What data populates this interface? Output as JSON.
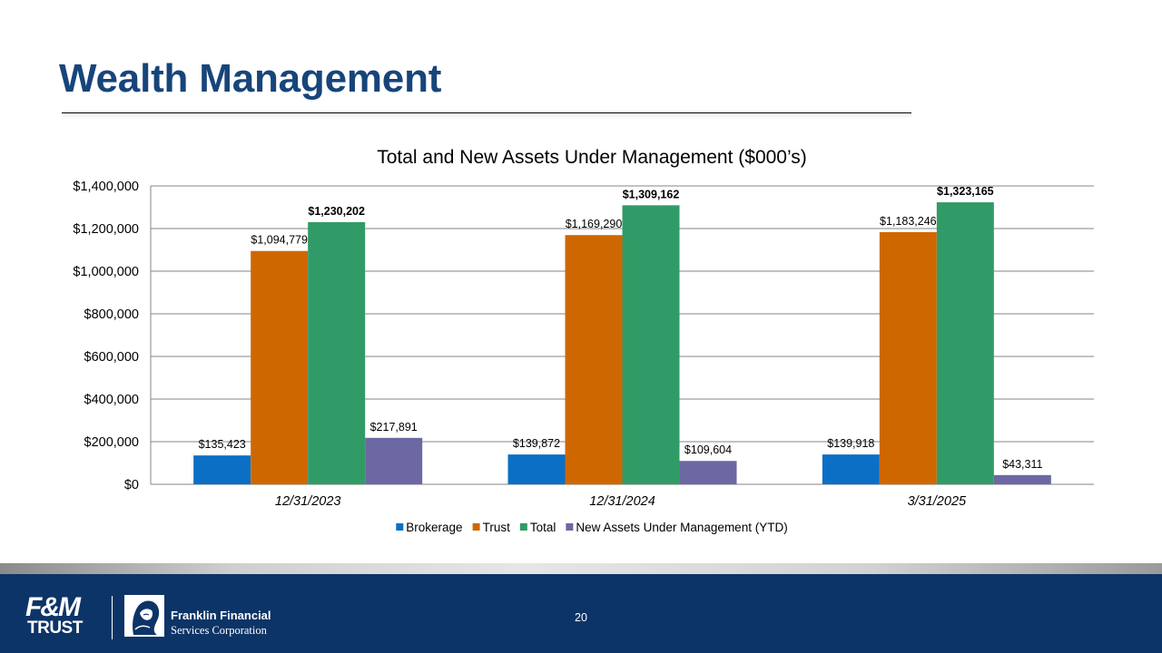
{
  "slide": {
    "title": "Wealth Management",
    "page_number": "20"
  },
  "footer": {
    "fm_logo": "F&M TRUST",
    "company_name_line1": "Franklin Financial",
    "company_name_line2": "Services Corporation"
  },
  "colors": {
    "title": "#17457a",
    "footer_band": "#0d3467",
    "brokerage": "#0b6fc5",
    "trust": "#cf6700",
    "total": "#319b67",
    "new_assets": "#6b68a3"
  },
  "chart_data": {
    "type": "bar",
    "title": "Total and New Assets Under Management ($000’s)",
    "categories": [
      "12/31/2023",
      "12/31/2024",
      "3/31/2025"
    ],
    "series": [
      {
        "name": "Brokerage",
        "color": "#0b6fc5",
        "values": [
          135423,
          139872,
          139918
        ],
        "labels": [
          "$135,423",
          "$139,872",
          "$139,918"
        ],
        "label_bold": false
      },
      {
        "name": "Trust",
        "color": "#cf6700",
        "values": [
          1094779,
          1169290,
          1183246
        ],
        "labels": [
          "$1,094,779",
          "$1,169,290",
          "$1,183,246"
        ],
        "label_bold": false
      },
      {
        "name": "Total",
        "color": "#319b67",
        "values": [
          1230202,
          1309162,
          1323165
        ],
        "labels": [
          "$1,230,202",
          "$1,309,162",
          "$1,323,165"
        ],
        "label_bold": true
      },
      {
        "name": "New Assets Under Management (YTD)",
        "color": "#6b68a3",
        "values": [
          217891,
          109604,
          43311
        ],
        "labels": [
          "$217,891",
          "$109,604",
          "$43,311"
        ],
        "label_bold": false
      }
    ],
    "ylim": [
      0,
      1400000
    ],
    "yticks": [
      0,
      200000,
      400000,
      600000,
      800000,
      1000000,
      1200000,
      1400000
    ],
    "ytick_labels": [
      "$0",
      "$200,000",
      "$400,000",
      "$600,000",
      "$800,000",
      "$1,000,000",
      "$1,200,000",
      "$1,400,000"
    ],
    "grid": true,
    "legend_position": "bottom",
    "xlabel": "",
    "ylabel": ""
  }
}
